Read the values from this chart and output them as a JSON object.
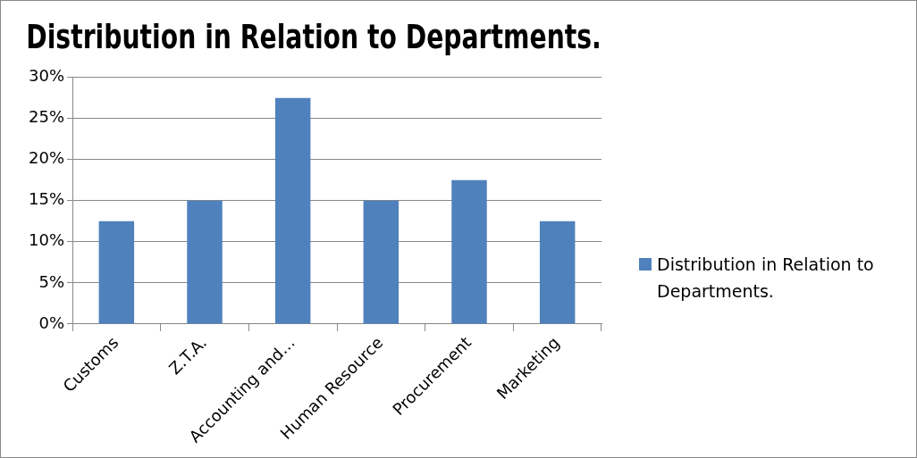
{
  "chart_data": {
    "type": "bar",
    "title": "Distribution in Relation to Departments.",
    "categories": [
      "Customs",
      "Z.T.A.",
      "Accounting and…",
      "Human Resource",
      "Procurement",
      "Marketing"
    ],
    "series": [
      {
        "name": "Distribution in Relation to Departments.",
        "color": "#4f81bd",
        "values": [
          12.5,
          15,
          27.5,
          15,
          17.5,
          12.5
        ]
      }
    ],
    "ylim": [
      0,
      30
    ],
    "yticks": [
      {
        "value": 0,
        "label": "0%"
      },
      {
        "value": 5,
        "label": "5%"
      },
      {
        "value": 10,
        "label": "10%"
      },
      {
        "value": 15,
        "label": "15%"
      },
      {
        "value": 20,
        "label": "20%"
      },
      {
        "value": 25,
        "label": "25%"
      },
      {
        "value": 30,
        "label": "30%"
      }
    ],
    "grid": "y",
    "legend": "right"
  }
}
